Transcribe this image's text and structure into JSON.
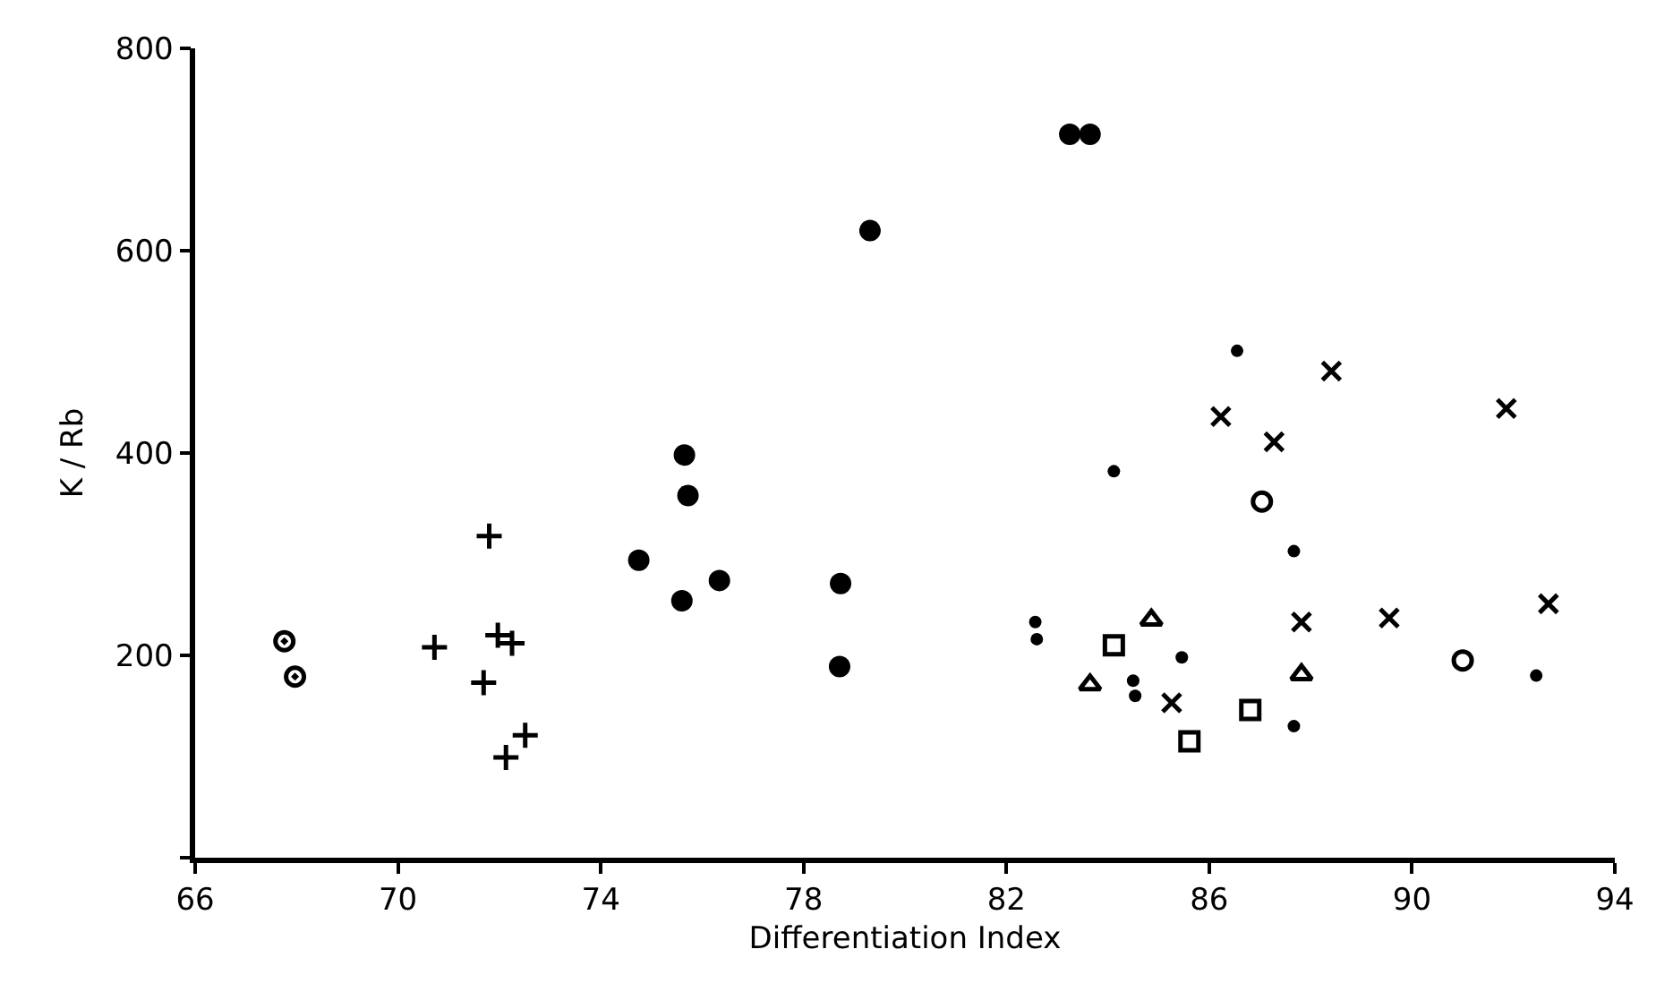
{
  "chart_data": {
    "type": "scatter",
    "xlabel": "Differentiation Index",
    "ylabel": "K / Rb",
    "xlim": [
      66,
      94
    ],
    "xticks": [
      66,
      70,
      74,
      78,
      82,
      86,
      90,
      94
    ],
    "ylim": [
      0,
      800
    ],
    "yticks": [
      {
        "value": 0,
        "label": null
      },
      200,
      400,
      600,
      800
    ],
    "legend": false,
    "series": [
      {
        "color": "#000000",
        "marker": "circle-half",
        "x": [
          67.76,
          67.97
        ],
        "values": [
          214,
          179
        ]
      },
      {
        "color": "#000000",
        "marker": "cross",
        "x": [
          70.72,
          71.8,
          71.69,
          71.97,
          72.25,
          72.13,
          72.51
        ],
        "values": [
          208,
          318,
          173,
          220,
          212,
          99,
          121
        ]
      },
      {
        "color": "#000000",
        "marker": "circle",
        "x": [
          74.75,
          75.65,
          75.72,
          75.6,
          76.34,
          78.73,
          78.71,
          79.31,
          83.25,
          83.65
        ],
        "values": [
          294,
          398,
          358,
          254,
          274,
          271,
          189,
          620,
          715,
          715
        ]
      },
      {
        "color": "#000000",
        "marker": "point",
        "x": [
          86.55,
          84.12,
          87.67,
          82.57,
          82.6,
          85.46,
          84.5,
          84.54,
          87.67,
          92.45
        ],
        "values": [
          501,
          382,
          303,
          233,
          216,
          198,
          175,
          160,
          130,
          180
        ]
      },
      {
        "color": "#000000",
        "marker": "x",
        "x": [
          86.23,
          88.41,
          87.28,
          91.86,
          87.82,
          89.55,
          92.69,
          85.26
        ],
        "values": [
          436,
          481,
          411,
          444,
          233,
          237,
          251,
          153
        ]
      },
      {
        "color": "#000000",
        "marker": "triangle-open",
        "x": [
          84.86,
          83.65,
          87.82
        ],
        "values": [
          235,
          171,
          181
        ]
      },
      {
        "color": "#000000",
        "marker": "square-open",
        "x": [
          84.12,
          86.81,
          85.61
        ],
        "values": [
          210,
          146,
          115
        ]
      },
      {
        "color": "#000000",
        "marker": "circle-open",
        "x": [
          87.04,
          91.0
        ],
        "values": [
          352,
          195
        ]
      }
    ]
  }
}
